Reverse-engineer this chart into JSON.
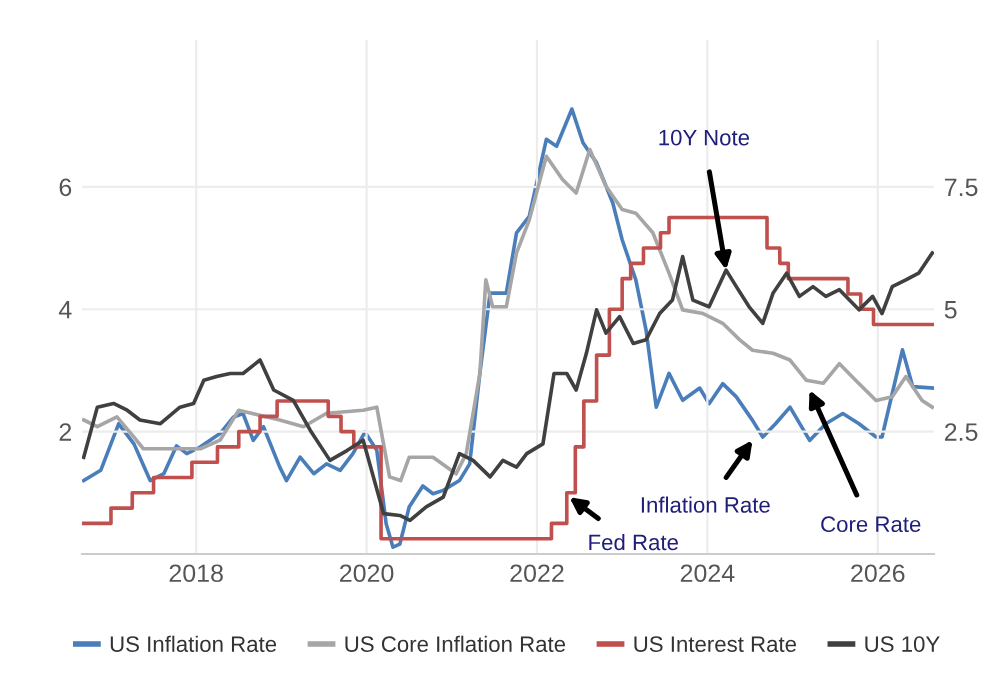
{
  "chart_data": {
    "type": "line",
    "xlim": [
      2016.66,
      2026.66
    ],
    "xticks": [
      2018,
      2020,
      2022,
      2024,
      2026
    ],
    "ylim": [
      0,
      8.4
    ],
    "yticks": [
      2,
      4,
      6
    ],
    "y2lim": [
      0,
      10.5
    ],
    "y2ticks": [
      2.5,
      5,
      7.5
    ],
    "grid": true,
    "legend": "bottom",
    "line_style": "solid",
    "marker": "none",
    "series": [
      {
        "name": "US Inflation Rate",
        "color": "#4a7ebb",
        "axis": "y2",
        "x": [
          2016.68,
          2016.88,
          2017.09,
          2017.27,
          2017.46,
          2017.62,
          2017.77,
          2017.89,
          2018.05,
          2018.28,
          2018.44,
          2018.55,
          2018.67,
          2018.79,
          2018.98,
          2019.06,
          2019.22,
          2019.38,
          2019.53,
          2019.69,
          2019.84,
          2019.98,
          2020.12,
          2020.23,
          2020.31,
          2020.39,
          2020.5,
          2020.66,
          2020.78,
          2020.9,
          2021.09,
          2021.21,
          2021.33,
          2021.45,
          2021.64,
          2021.76,
          2021.91,
          2022.11,
          2022.23,
          2022.41,
          2022.54,
          2022.7,
          2022.89,
          2023.0,
          2023.16,
          2023.28,
          2023.4,
          2023.55,
          2023.71,
          2023.91,
          2024.02,
          2024.18,
          2024.34,
          2024.53,
          2024.65,
          2024.8,
          2024.97,
          2025.2,
          2025.39,
          2025.59,
          2025.78,
          2025.98,
          2026.05,
          2026.29,
          2026.41,
          2026.64
        ],
        "values": [
          1.5,
          1.71,
          2.66,
          2.25,
          1.5,
          1.64,
          2.21,
          2.05,
          2.19,
          2.46,
          2.8,
          2.87,
          2.32,
          2.6,
          1.78,
          1.5,
          1.98,
          1.64,
          1.84,
          1.71,
          2.05,
          2.49,
          2.12,
          0.62,
          0.14,
          0.2,
          0.96,
          1.39,
          1.23,
          1.3,
          1.5,
          1.84,
          3.69,
          5.33,
          5.33,
          6.56,
          6.9,
          8.47,
          8.33,
          9.09,
          8.4,
          7.99,
          7.17,
          6.42,
          5.6,
          4.58,
          3.0,
          3.69,
          3.14,
          3.39,
          3.07,
          3.48,
          3.21,
          2.73,
          2.39,
          2.66,
          3.0,
          2.32,
          2.66,
          2.87,
          2.66,
          2.39,
          2.39,
          4.17,
          3.42,
          3.39
        ]
      },
      {
        "name": "US Core Inflation Rate",
        "color": "#a6a6a6",
        "x": [
          2016.68,
          2016.84,
          2017.07,
          2017.27,
          2017.38,
          2018.05,
          2018.28,
          2018.5,
          2018.98,
          2019.26,
          2019.53,
          2019.96,
          2020.12,
          2020.27,
          2020.4,
          2020.5,
          2020.78,
          2021.05,
          2021.17,
          2021.33,
          2021.4,
          2021.48,
          2021.64,
          2021.76,
          2021.91,
          2022.11,
          2022.3,
          2022.46,
          2022.62,
          2022.81,
          2023.0,
          2023.16,
          2023.36,
          2023.55,
          2023.71,
          2023.95,
          2024.18,
          2024.38,
          2024.53,
          2024.77,
          2024.97,
          2025.16,
          2025.36,
          2025.55,
          2025.74,
          2025.98,
          2026.17,
          2026.33,
          2026.52,
          2026.64
        ],
        "values": [
          2.19,
          2.08,
          2.24,
          1.91,
          1.72,
          1.72,
          1.86,
          2.35,
          2.19,
          2.08,
          2.3,
          2.35,
          2.4,
          1.26,
          1.2,
          1.58,
          1.58,
          1.31,
          1.64,
          2.95,
          4.48,
          4.04,
          4.04,
          4.92,
          5.46,
          6.5,
          6.12,
          5.9,
          6.61,
          6.01,
          5.63,
          5.57,
          5.25,
          4.59,
          3.99,
          3.93,
          3.77,
          3.5,
          3.33,
          3.28,
          3.17,
          2.84,
          2.79,
          3.11,
          2.84,
          2.51,
          2.57,
          2.9,
          2.51,
          2.4
        ]
      },
      {
        "name": "US Interest Rate",
        "color": "#c0504d",
        "type": "step",
        "x": [
          2016.68,
          2017.0,
          2017.25,
          2017.5,
          2017.95,
          2018.25,
          2018.5,
          2018.75,
          2018.95,
          2019.55,
          2019.7,
          2019.85,
          2020.17,
          2022.17,
          2022.35,
          2022.45,
          2022.55,
          2022.7,
          2022.85,
          2023.0,
          2023.1,
          2023.25,
          2023.45,
          2023.55,
          2024.7,
          2024.85,
          2024.95,
          2025.65,
          2025.8,
          2025.95,
          2026.66
        ],
        "values": [
          0.5,
          0.75,
          1.0,
          1.25,
          1.5,
          1.75,
          2.0,
          2.25,
          2.5,
          2.25,
          2.0,
          1.75,
          0.25,
          0.5,
          1.0,
          1.75,
          2.5,
          3.25,
          4.0,
          4.5,
          4.75,
          5.0,
          5.25,
          5.5,
          5.0,
          4.75,
          4.5,
          4.25,
          4.0,
          3.75,
          3.75
        ]
      },
      {
        "name": "US 10Y",
        "color": "#404040",
        "x": [
          2016.68,
          2016.84,
          2017.03,
          2017.19,
          2017.34,
          2017.58,
          2017.81,
          2017.97,
          2018.09,
          2018.24,
          2018.4,
          2018.55,
          2018.75,
          2018.91,
          2019.14,
          2019.34,
          2019.57,
          2019.77,
          2019.96,
          2020.2,
          2020.39,
          2020.51,
          2020.7,
          2020.9,
          2021.09,
          2021.25,
          2021.45,
          2021.6,
          2021.76,
          2021.88,
          2022.07,
          2022.2,
          2022.35,
          2022.46,
          2022.58,
          2022.7,
          2022.81,
          2022.97,
          2023.13,
          2023.28,
          2023.44,
          2023.59,
          2023.71,
          2023.83,
          2024.02,
          2024.22,
          2024.34,
          2024.49,
          2024.65,
          2024.77,
          2024.93,
          2025.08,
          2025.24,
          2025.39,
          2025.55,
          2025.78,
          2025.94,
          2026.05,
          2026.17,
          2026.33,
          2026.48,
          2026.64
        ],
        "values": [
          1.58,
          2.4,
          2.46,
          2.35,
          2.19,
          2.13,
          2.4,
          2.46,
          2.84,
          2.9,
          2.95,
          2.95,
          3.17,
          2.68,
          2.51,
          2.02,
          1.53,
          1.69,
          1.86,
          0.66,
          0.63,
          0.55,
          0.77,
          0.93,
          1.64,
          1.53,
          1.26,
          1.53,
          1.42,
          1.64,
          1.8,
          2.95,
          2.95,
          2.68,
          3.28,
          3.99,
          3.61,
          3.88,
          3.44,
          3.5,
          3.93,
          4.15,
          4.86,
          4.15,
          4.04,
          4.64,
          4.37,
          4.04,
          3.77,
          4.26,
          4.59,
          4.21,
          4.37,
          4.21,
          4.32,
          3.99,
          4.21,
          3.93,
          4.37,
          4.48,
          4.59,
          4.92
        ]
      }
    ],
    "annotations": [
      {
        "text": "10Y Note",
        "x": 2024.22,
        "y": 4.64
      },
      {
        "text": "Fed Rate",
        "x": 2022.38,
        "y": 0.93
      },
      {
        "text": "Inflation Rate",
        "x": 2024.53,
        "y": 1.86
      },
      {
        "text": "Core Rate",
        "x": 2025.2,
        "y": 2.68
      }
    ]
  }
}
